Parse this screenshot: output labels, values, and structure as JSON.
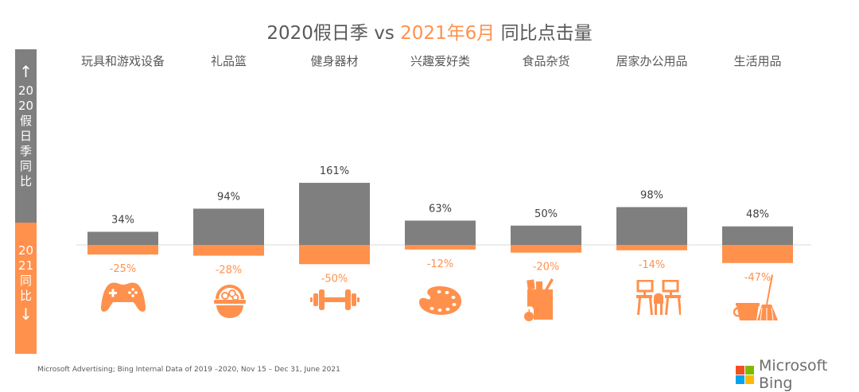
{
  "title": {
    "part1": "2020假日季 vs ",
    "part2": "2021年6月",
    "part3": " 同比点击量"
  },
  "side_legend": {
    "top_arrow": "↑",
    "top_lines": [
      "20",
      "20",
      "假",
      "日",
      "季",
      "同",
      "比"
    ],
    "bottom_lines": [
      "20",
      "21",
      "同",
      "比"
    ],
    "bottom_arrow": "↓"
  },
  "colors": {
    "grey": "#7F7F7F",
    "orange": "#FF914D",
    "text": "#595959",
    "baseline": "#D9D9D9"
  },
  "chart_data": {
    "type": "bar",
    "title": "2020假日季 vs 2021年6月 同比点击量",
    "categories": [
      "玩具和游戏设备",
      "礼品篮",
      "健身器材",
      "兴趣爱好类",
      "食品杂货",
      "居家办公用品",
      "生活用品"
    ],
    "series": [
      {
        "name": "2020假日季同比",
        "values": [
          34,
          94,
          161,
          63,
          50,
          98,
          48
        ],
        "labels": [
          "34%",
          "94%",
          "161%",
          "63%",
          "50%",
          "98%",
          "48%"
        ]
      },
      {
        "name": "2021同比",
        "values": [
          -25,
          -28,
          -50,
          -12,
          -20,
          -14,
          -47
        ],
        "labels": [
          "-25%",
          "-28%",
          "-50%",
          "-12%",
          "-20%",
          "-14%",
          "-47%"
        ]
      }
    ],
    "icons": [
      "gamepad-icon",
      "basket-icon",
      "dumbbell-icon",
      "palette-icon",
      "grocery-bag-icon",
      "office-desks-icon",
      "bucket-broom-icon"
    ],
    "xlabel": "",
    "ylabel": "",
    "ylim": [
      -60,
      170
    ],
    "grid": false,
    "legend": "left"
  },
  "footer": {
    "source": "Microsoft Advertising; Bing Internal Data of 2019 –2020, Nov 15 – Dec 31, June 2021",
    "logo_text": "Microsoft Bing",
    "logo_colors": [
      "#F25022",
      "#7FBA00",
      "#00A4EF",
      "#FFB900"
    ]
  }
}
